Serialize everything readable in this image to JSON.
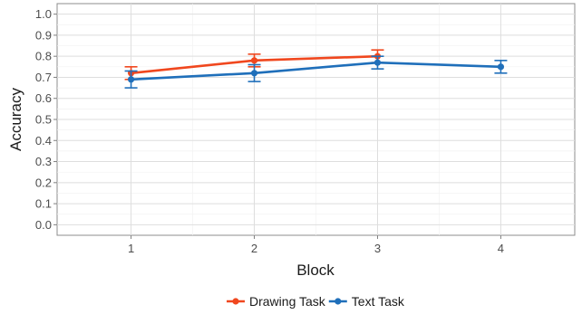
{
  "chart_data": {
    "type": "line",
    "xlabel": "Block",
    "ylabel": "Accuracy",
    "x": [
      1,
      2,
      3,
      4
    ],
    "x_tick_labels": [
      "1",
      "2",
      "3",
      "4"
    ],
    "xlim": [
      0.4,
      4.6
    ],
    "ylim": [
      -0.05,
      1.05
    ],
    "y_ticks": [
      0.0,
      0.1,
      0.2,
      0.3,
      0.4,
      0.5,
      0.6,
      0.7,
      0.8,
      0.9,
      1.0
    ],
    "y_tick_labels": [
      "0.0",
      "0.1",
      "0.2",
      "0.3",
      "0.4",
      "0.5",
      "0.6",
      "0.7",
      "0.8",
      "0.9",
      "1.0"
    ],
    "grid": true,
    "legend_position": "bottom",
    "series": [
      {
        "name": "Drawing Task",
        "color": "#f0471e",
        "x": [
          1,
          2,
          3
        ],
        "values": [
          0.72,
          0.78,
          0.8
        ],
        "error_low": [
          0.69,
          0.75,
          0.77
        ],
        "error_high": [
          0.75,
          0.81,
          0.83
        ]
      },
      {
        "name": "Text Task",
        "color": "#1f6fba",
        "x": [
          1,
          2,
          3,
          4
        ],
        "values": [
          0.69,
          0.72,
          0.77,
          0.75
        ],
        "error_low": [
          0.65,
          0.68,
          0.74,
          0.72
        ],
        "error_high": [
          0.73,
          0.76,
          0.8,
          0.78
        ]
      }
    ]
  }
}
